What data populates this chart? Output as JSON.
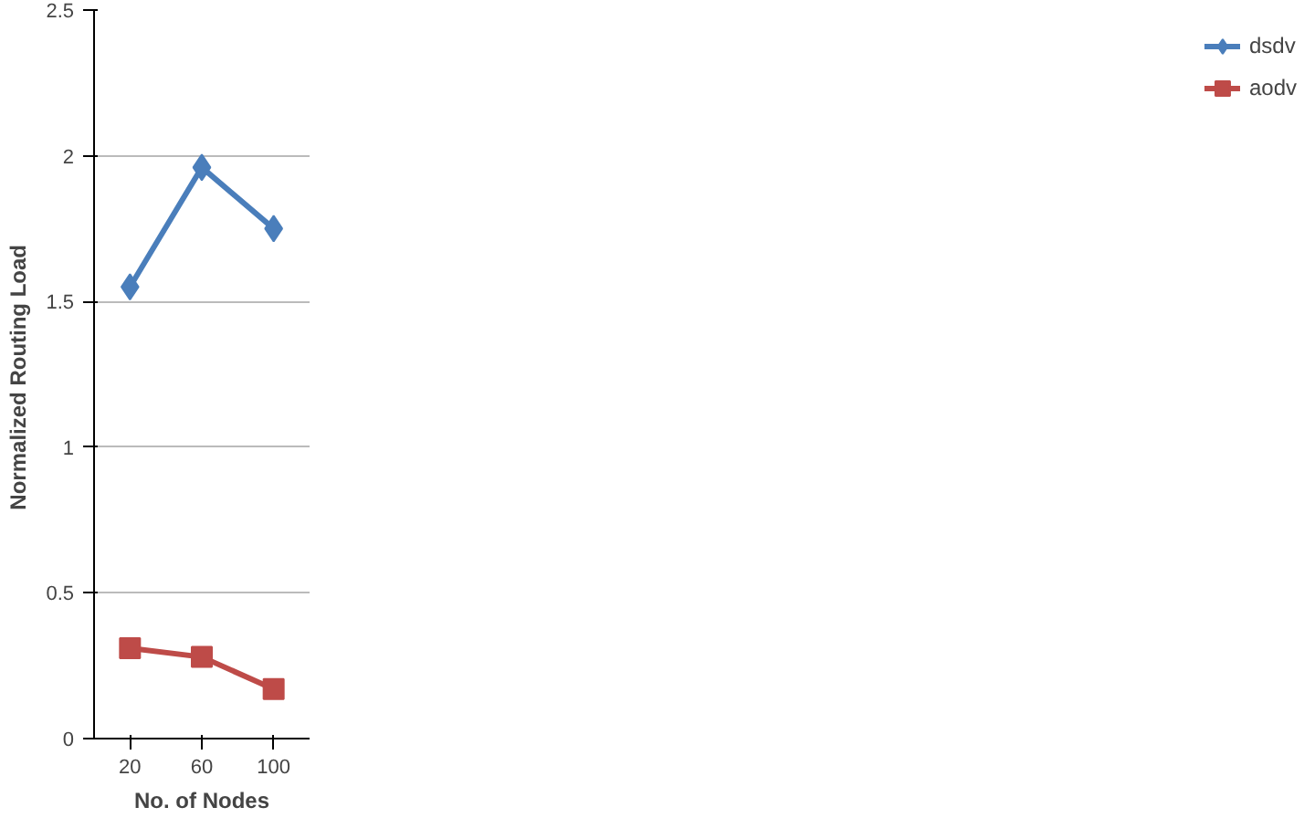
{
  "chart_data": {
    "type": "line",
    "xlabel": "No. of Nodes",
    "ylabel": "Normalized  Routing Load",
    "categories": [
      "20",
      "60",
      "100"
    ],
    "series": [
      {
        "name": "dsdv",
        "color": "#4a7ebb",
        "marker": "diamond",
        "values": [
          1.55,
          1.96,
          1.75
        ]
      },
      {
        "name": "aodv",
        "color": "#be4b48",
        "marker": "square",
        "values": [
          0.31,
          0.28,
          0.17
        ]
      }
    ],
    "ylim": [
      0,
      2.5
    ],
    "yticks": [
      0,
      0.5,
      1,
      1.5,
      2,
      2.5
    ],
    "grid": "y",
    "legend": "right"
  }
}
